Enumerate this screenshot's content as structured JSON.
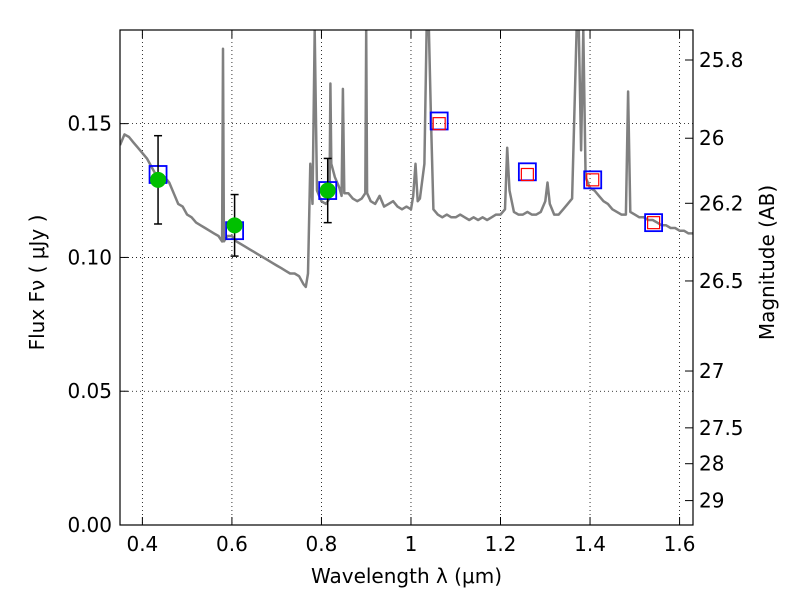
{
  "chart_data": {
    "type": "scatter",
    "xlabel": "Wavelength  λ (μm)",
    "ylabel": "Flux  Fν  ( μJy )",
    "y2label": "Magnitude (AB)",
    "xlim": [
      0.35,
      1.63
    ],
    "ylim": [
      0.0,
      0.185
    ],
    "grid": true,
    "x_ticks": [
      {
        "v": 0.4,
        "label": "0.4"
      },
      {
        "v": 0.6,
        "label": "0.6"
      },
      {
        "v": 0.8,
        "label": "0.8"
      },
      {
        "v": 1.0,
        "label": "1"
      },
      {
        "v": 1.2,
        "label": "1.2"
      },
      {
        "v": 1.4,
        "label": "1.4"
      },
      {
        "v": 1.6,
        "label": "1.6"
      }
    ],
    "y_ticks": [
      {
        "v": 0.0,
        "label": "0.00"
      },
      {
        "v": 0.05,
        "label": "0.05"
      },
      {
        "v": 0.1,
        "label": "0.10"
      },
      {
        "v": 0.15,
        "label": "0.15"
      }
    ],
    "mag_ticks": [
      {
        "mag": 25.8,
        "label": "25.8"
      },
      {
        "mag": 26.0,
        "label": "26"
      },
      {
        "mag": 26.2,
        "label": "26.2"
      },
      {
        "mag": 26.5,
        "label": "26.5"
      },
      {
        "mag": 27.0,
        "label": "27"
      },
      {
        "mag": 27.5,
        "label": "27.5"
      },
      {
        "mag": 28.0,
        "label": "28"
      },
      {
        "mag": 29.0,
        "label": "29"
      }
    ],
    "series": [
      {
        "kind": "model_spectrum",
        "color": "#808080",
        "points": [
          [
            0.35,
            0.142
          ],
          [
            0.36,
            0.146
          ],
          [
            0.37,
            0.145
          ],
          [
            0.38,
            0.143
          ],
          [
            0.39,
            0.141
          ],
          [
            0.4,
            0.139
          ],
          [
            0.41,
            0.137
          ],
          [
            0.42,
            0.134
          ],
          [
            0.43,
            0.131
          ],
          [
            0.44,
            0.128
          ],
          [
            0.45,
            0.13
          ],
          [
            0.46,
            0.128
          ],
          [
            0.47,
            0.124
          ],
          [
            0.48,
            0.12
          ],
          [
            0.49,
            0.119
          ],
          [
            0.5,
            0.116
          ],
          [
            0.51,
            0.115
          ],
          [
            0.52,
            0.113
          ],
          [
            0.53,
            0.112
          ],
          [
            0.54,
            0.111
          ],
          [
            0.55,
            0.11
          ],
          [
            0.56,
            0.109
          ],
          [
            0.57,
            0.108
          ],
          [
            0.578,
            0.106
          ],
          [
            0.58,
            0.178
          ],
          [
            0.582,
            0.106
          ],
          [
            0.59,
            0.108
          ],
          [
            0.6,
            0.108
          ],
          [
            0.61,
            0.106
          ],
          [
            0.62,
            0.105
          ],
          [
            0.63,
            0.104
          ],
          [
            0.64,
            0.103
          ],
          [
            0.65,
            0.102
          ],
          [
            0.66,
            0.101
          ],
          [
            0.67,
            0.1
          ],
          [
            0.68,
            0.099
          ],
          [
            0.69,
            0.098
          ],
          [
            0.7,
            0.097
          ],
          [
            0.71,
            0.096
          ],
          [
            0.72,
            0.095
          ],
          [
            0.73,
            0.094
          ],
          [
            0.74,
            0.094
          ],
          [
            0.75,
            0.093
          ],
          [
            0.76,
            0.09
          ],
          [
            0.765,
            0.089
          ],
          [
            0.77,
            0.094
          ],
          [
            0.775,
            0.135
          ],
          [
            0.78,
            0.12
          ],
          [
            0.785,
            0.185
          ],
          [
            0.79,
            0.125
          ],
          [
            0.8,
            0.121
          ],
          [
            0.81,
            0.12
          ],
          [
            0.818,
            0.122
          ],
          [
            0.82,
            0.165
          ],
          [
            0.822,
            0.135
          ],
          [
            0.83,
            0.13
          ],
          [
            0.84,
            0.126
          ],
          [
            0.845,
            0.123
          ],
          [
            0.848,
            0.163
          ],
          [
            0.851,
            0.124
          ],
          [
            0.86,
            0.124
          ],
          [
            0.87,
            0.122
          ],
          [
            0.88,
            0.121
          ],
          [
            0.89,
            0.122
          ],
          [
            0.898,
            0.124
          ],
          [
            0.9,
            0.185
          ],
          [
            0.902,
            0.124
          ],
          [
            0.91,
            0.121
          ],
          [
            0.92,
            0.12
          ],
          [
            0.93,
            0.123
          ],
          [
            0.94,
            0.119
          ],
          [
            0.95,
            0.12
          ],
          [
            0.96,
            0.121
          ],
          [
            0.97,
            0.119
          ],
          [
            0.98,
            0.118
          ],
          [
            0.99,
            0.119
          ],
          [
            1.0,
            0.118
          ],
          [
            1.005,
            0.123
          ],
          [
            1.01,
            0.135
          ],
          [
            1.015,
            0.121
          ],
          [
            1.02,
            0.122
          ],
          [
            1.03,
            0.135
          ],
          [
            1.035,
            0.185
          ],
          [
            1.04,
            0.185
          ],
          [
            1.045,
            0.15
          ],
          [
            1.05,
            0.118
          ],
          [
            1.06,
            0.116
          ],
          [
            1.07,
            0.115
          ],
          [
            1.08,
            0.116
          ],
          [
            1.09,
            0.115
          ],
          [
            1.1,
            0.115
          ],
          [
            1.11,
            0.116
          ],
          [
            1.12,
            0.115
          ],
          [
            1.13,
            0.114
          ],
          [
            1.14,
            0.115
          ],
          [
            1.15,
            0.114
          ],
          [
            1.16,
            0.115
          ],
          [
            1.17,
            0.114
          ],
          [
            1.18,
            0.115
          ],
          [
            1.19,
            0.116
          ],
          [
            1.2,
            0.116
          ],
          [
            1.21,
            0.118
          ],
          [
            1.215,
            0.141
          ],
          [
            1.22,
            0.125
          ],
          [
            1.23,
            0.117
          ],
          [
            1.24,
            0.116
          ],
          [
            1.25,
            0.116
          ],
          [
            1.26,
            0.117
          ],
          [
            1.27,
            0.116
          ],
          [
            1.28,
            0.116
          ],
          [
            1.29,
            0.117
          ],
          [
            1.3,
            0.121
          ],
          [
            1.305,
            0.128
          ],
          [
            1.31,
            0.12
          ],
          [
            1.32,
            0.116
          ],
          [
            1.33,
            0.116
          ],
          [
            1.34,
            0.118
          ],
          [
            1.35,
            0.12
          ],
          [
            1.36,
            0.122
          ],
          [
            1.37,
            0.185
          ],
          [
            1.375,
            0.185
          ],
          [
            1.38,
            0.14
          ],
          [
            1.385,
            0.185
          ],
          [
            1.39,
            0.13
          ],
          [
            1.4,
            0.126
          ],
          [
            1.41,
            0.125
          ],
          [
            1.42,
            0.123
          ],
          [
            1.43,
            0.121
          ],
          [
            1.44,
            0.12
          ],
          [
            1.45,
            0.118
          ],
          [
            1.46,
            0.117
          ],
          [
            1.47,
            0.116
          ],
          [
            1.48,
            0.116
          ],
          [
            1.485,
            0.162
          ],
          [
            1.49,
            0.117
          ],
          [
            1.5,
            0.116
          ],
          [
            1.51,
            0.115
          ],
          [
            1.52,
            0.115
          ],
          [
            1.53,
            0.114
          ],
          [
            1.54,
            0.114
          ],
          [
            1.55,
            0.113
          ],
          [
            1.56,
            0.112
          ],
          [
            1.57,
            0.112
          ],
          [
            1.58,
            0.111
          ],
          [
            1.59,
            0.111
          ],
          [
            1.6,
            0.11
          ],
          [
            1.61,
            0.11
          ],
          [
            1.62,
            0.109
          ],
          [
            1.63,
            0.109
          ]
        ]
      },
      {
        "kind": "model_photometry",
        "color": "#0000ff",
        "points": [
          [
            0.435,
            0.131
          ],
          [
            0.606,
            0.11
          ],
          [
            0.814,
            0.125
          ],
          [
            1.063,
            0.151
          ],
          [
            1.26,
            0.132
          ],
          [
            1.406,
            0.129
          ],
          [
            1.542,
            0.113
          ]
        ]
      },
      {
        "kind": "observed_detections",
        "color": "#00c000",
        "points": [
          {
            "x": 0.435,
            "y": 0.129,
            "err": 0.0165
          },
          {
            "x": 0.606,
            "y": 0.112,
            "err": 0.0115
          },
          {
            "x": 0.814,
            "y": 0.125,
            "err": 0.012
          }
        ]
      },
      {
        "kind": "observed_other",
        "color": "#ff0000",
        "points": [
          [
            1.063,
            0.15
          ],
          [
            1.26,
            0.131
          ],
          [
            1.406,
            0.129
          ],
          [
            1.542,
            0.113
          ]
        ]
      }
    ]
  }
}
